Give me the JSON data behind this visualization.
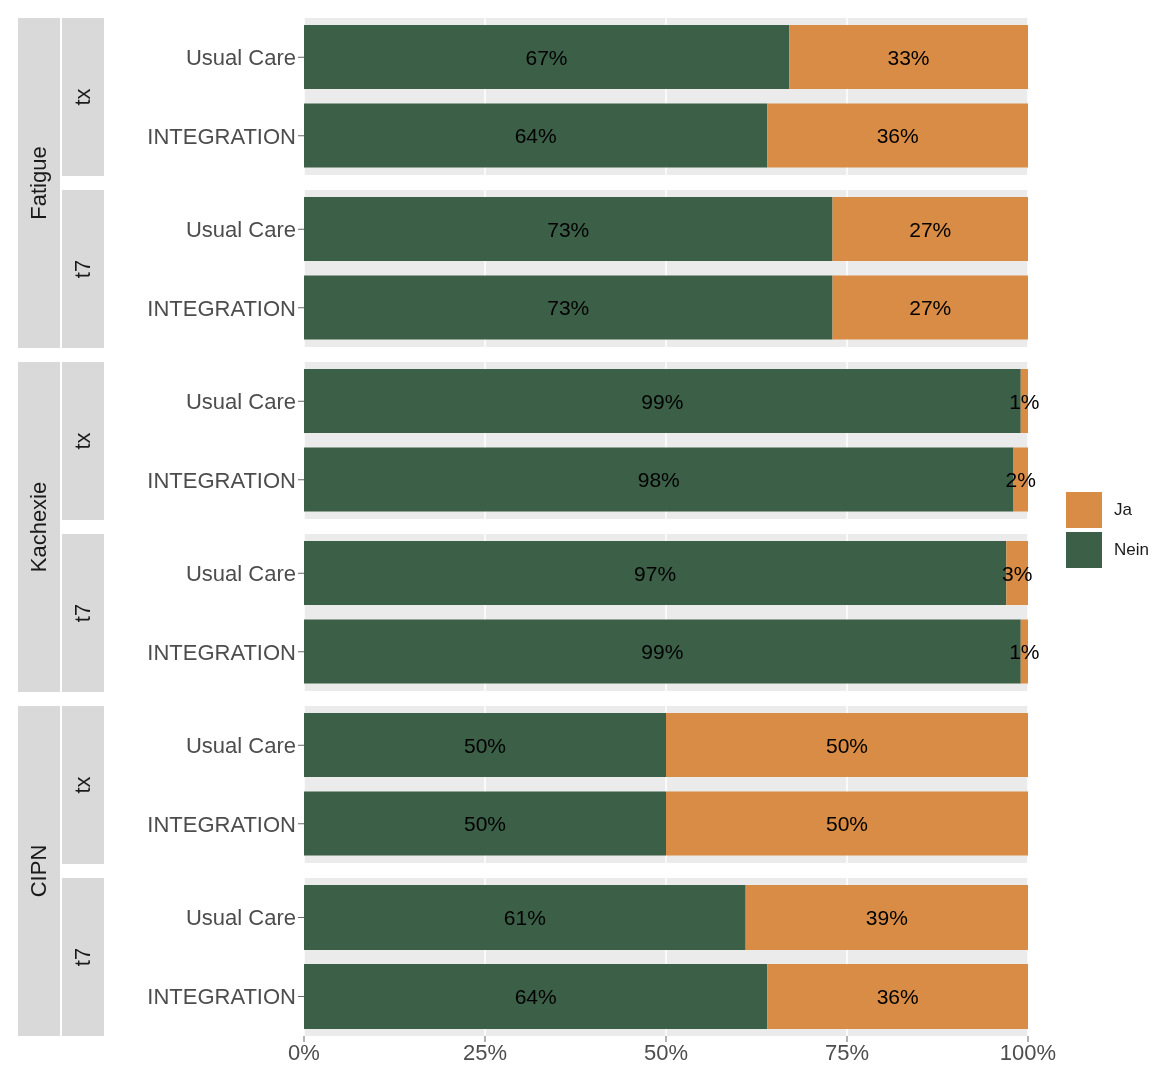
{
  "chart_data": [
    {
      "type": "bar",
      "orientation": "horizontal",
      "stacked": true,
      "title": "tx",
      "ylabel": "Fatigue",
      "categories": [
        "Usual Care",
        "INTEGRATION"
      ],
      "xlim": [
        0,
        100
      ],
      "xticks": [
        0,
        25,
        50,
        75,
        100
      ],
      "grid": "x",
      "tick_labels": "y",
      "series": [
        {
          "color": "#3c5f48",
          "values": [
            67,
            64
          ],
          "value_labels": [
            "67%",
            "64%"
          ]
        },
        {
          "color": "#d98c45",
          "values": [
            33,
            36
          ],
          "value_labels": [
            "33%",
            "36%"
          ]
        }
      ]
    },
    {
      "type": "bar",
      "orientation": "horizontal",
      "stacked": true,
      "title": "t7",
      "categories": [
        "Usual Care",
        "INTEGRATION"
      ],
      "xlim": [
        0,
        100
      ],
      "xticks": [
        0,
        25,
        50,
        75,
        100
      ],
      "grid": "x",
      "tick_labels": "y",
      "series": [
        {
          "color": "#3c5f48",
          "values": [
            73,
            73
          ],
          "value_labels": [
            "73%",
            "73%"
          ]
        },
        {
          "color": "#d98c45",
          "values": [
            27,
            27
          ],
          "value_labels": [
            "27%",
            "27%"
          ]
        }
      ]
    },
    {
      "type": "bar",
      "orientation": "horizontal",
      "stacked": true,
      "title": "tx",
      "ylabel": "Kachexie",
      "categories": [
        "Usual Care",
        "INTEGRATION"
      ],
      "xlim": [
        0,
        100
      ],
      "xticks": [
        0,
        25,
        50,
        75,
        100
      ],
      "grid": "x",
      "tick_labels": "y",
      "legend": "right",
      "series": [
        {
          "name": "Nein",
          "color": "#3c5f48",
          "values": [
            99,
            98
          ],
          "value_labels": [
            "99%",
            "98%"
          ]
        },
        {
          "name": "Ja",
          "color": "#d98c45",
          "values": [
            1,
            2
          ],
          "value_labels": [
            "1%",
            "2%"
          ]
        }
      ]
    },
    {
      "type": "bar",
      "orientation": "horizontal",
      "stacked": true,
      "title": "t7",
      "categories": [
        "Usual Care",
        "INTEGRATION"
      ],
      "xlim": [
        0,
        100
      ],
      "xticks": [
        0,
        25,
        50,
        75,
        100
      ],
      "grid": "x",
      "tick_labels": "y",
      "series": [
        {
          "color": "#3c5f48",
          "values": [
            97,
            99
          ],
          "value_labels": [
            "97%",
            "99%"
          ]
        },
        {
          "color": "#d98c45",
          "values": [
            3,
            1
          ],
          "value_labels": [
            "3%",
            "1%"
          ]
        }
      ]
    },
    {
      "type": "bar",
      "orientation": "horizontal",
      "stacked": true,
      "title": "tx",
      "ylabel": "CIPN",
      "categories": [
        "Usual Care",
        "INTEGRATION"
      ],
      "xlim": [
        0,
        100
      ],
      "xticks": [
        0,
        25,
        50,
        75,
        100
      ],
      "grid": "x",
      "tick_labels": "y",
      "series": [
        {
          "color": "#3c5f48",
          "values": [
            50,
            50
          ],
          "value_labels": [
            "50%",
            "50%"
          ]
        },
        {
          "color": "#d98c45",
          "values": [
            50,
            50
          ],
          "value_labels": [
            "50%",
            "50%"
          ]
        }
      ]
    },
    {
      "type": "bar",
      "orientation": "horizontal",
      "stacked": true,
      "title": "t7",
      "categories": [
        "Usual Care",
        "INTEGRATION"
      ],
      "xlim": [
        0,
        100
      ],
      "xticks": [
        {
          "value": 0,
          "label": "0%"
        },
        {
          "value": 25,
          "label": "25%"
        },
        {
          "value": 50,
          "label": "50%"
        },
        {
          "value": 75,
          "label": "75%"
        },
        {
          "value": 100,
          "label": "100%"
        }
      ],
      "grid": "x",
      "series": [
        {
          "color": "#3c5f48",
          "values": [
            61,
            64
          ],
          "value_labels": [
            "61%",
            "64%"
          ]
        },
        {
          "color": "#d98c45",
          "values": [
            39,
            36
          ],
          "value_labels": [
            "39%",
            "36%"
          ]
        }
      ]
    }
  ]
}
